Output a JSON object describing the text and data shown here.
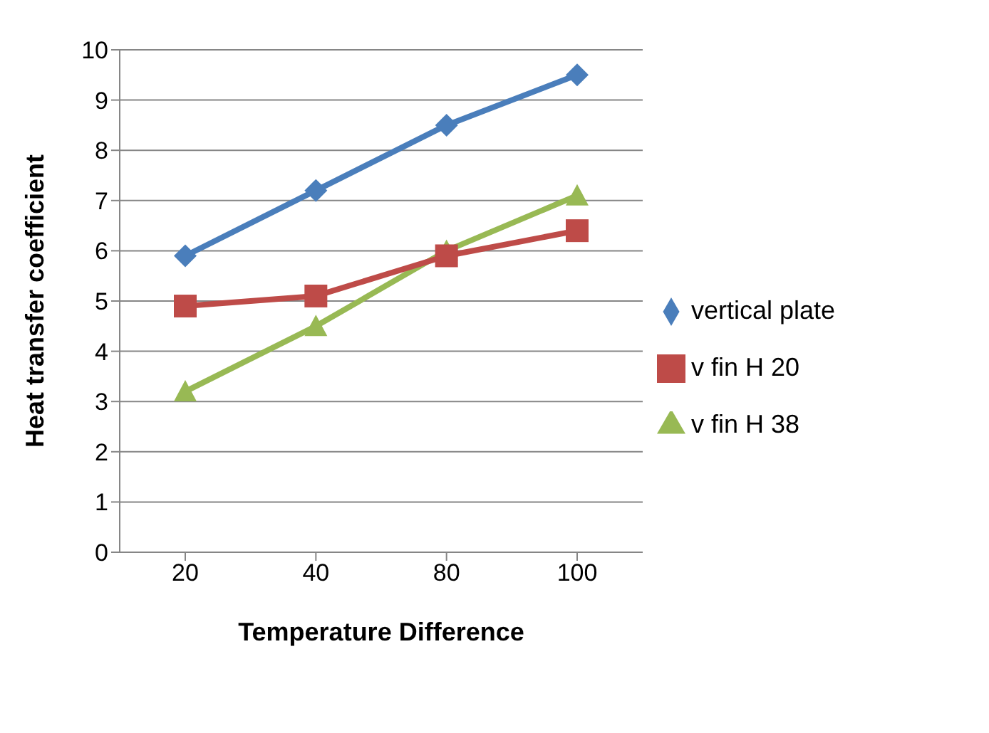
{
  "chart_data": {
    "type": "line",
    "xlabel": "Temperature Difference",
    "ylabel": "Heat transfer coefficient",
    "categories": [
      "20",
      "40",
      "80",
      "100"
    ],
    "series": [
      {
        "name": "vertical plate",
        "color": "#4a7ebb",
        "marker": "diamond",
        "values": [
          5.9,
          7.2,
          8.5,
          9.5
        ]
      },
      {
        "name": "v fin H 20",
        "color": "#be4b48",
        "marker": "square",
        "values": [
          4.9,
          5.1,
          5.9,
          6.4
        ]
      },
      {
        "name": "v fin H 38",
        "color": "#98b954",
        "marker": "triangle",
        "values": [
          3.2,
          4.5,
          6.0,
          7.1
        ]
      }
    ],
    "ylim": [
      0,
      10
    ],
    "yticks": [
      0,
      1,
      2,
      3,
      4,
      5,
      6,
      7,
      8,
      9,
      10
    ],
    "grid": "y",
    "legend": "right"
  }
}
